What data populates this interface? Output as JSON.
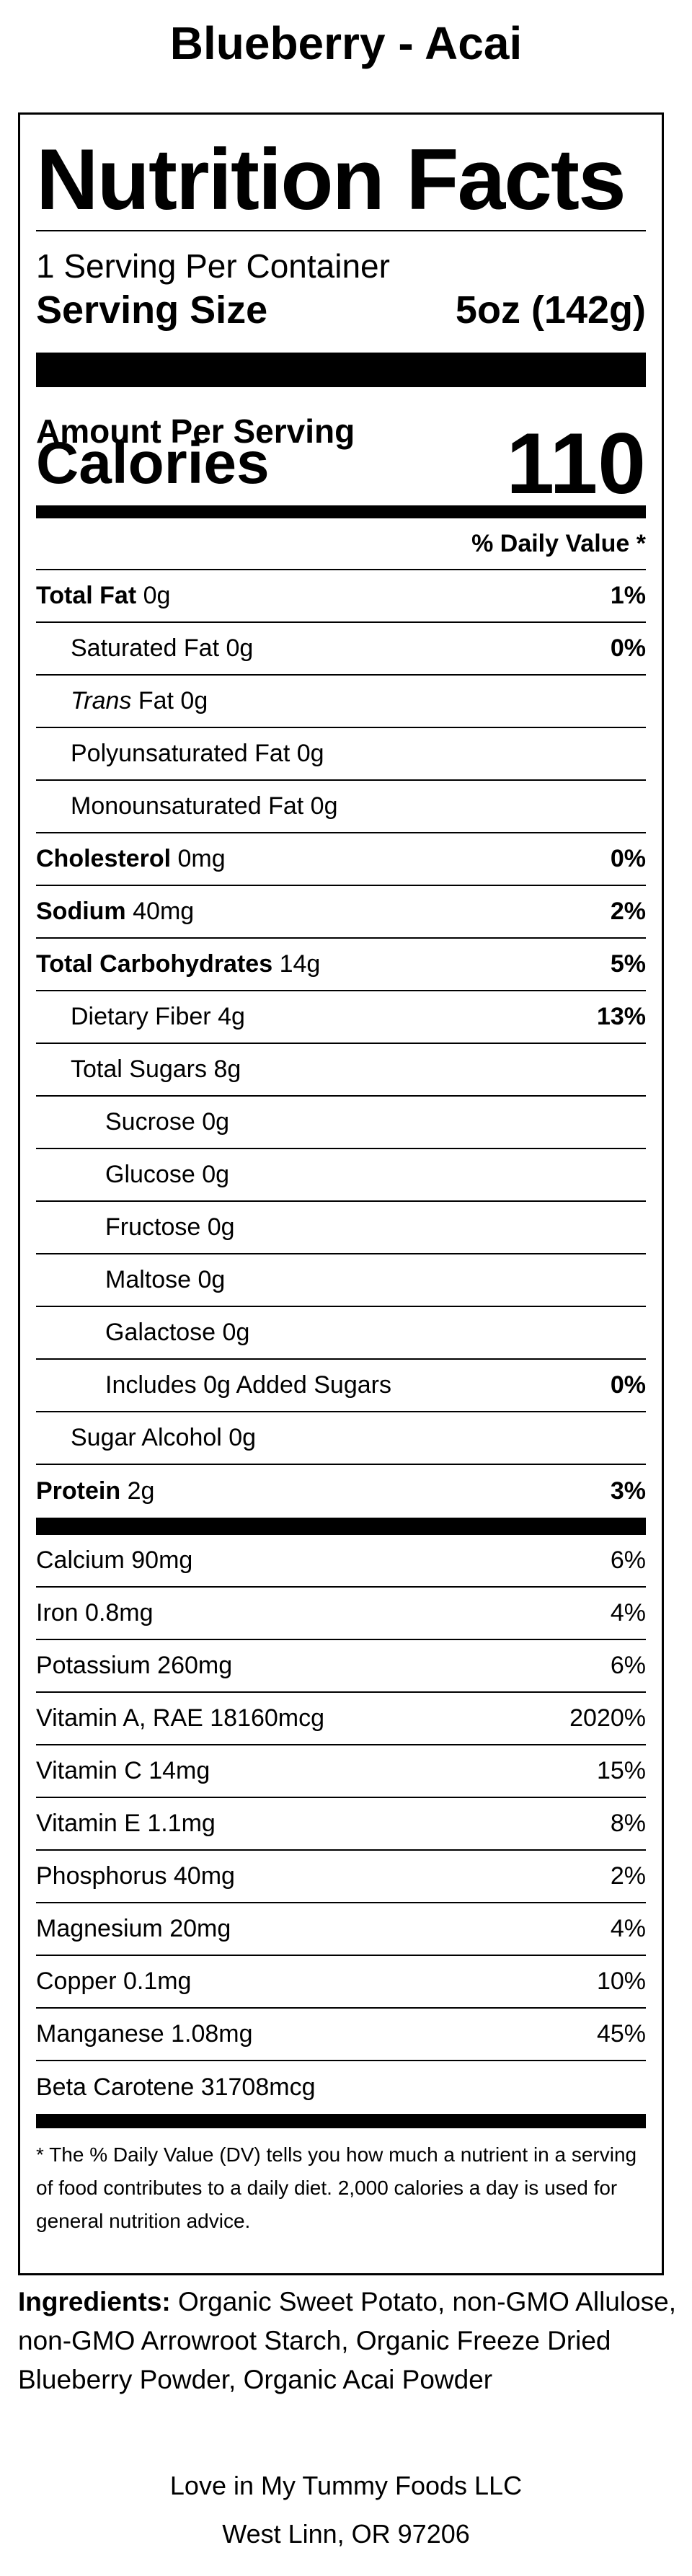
{
  "product": {
    "title": "Blueberry - Acai"
  },
  "label": {
    "heading": "Nutrition Facts",
    "servings_per_container": "1 Serving Per Container",
    "serving_size_label": "Serving Size",
    "serving_size_value": "5oz (142g)",
    "amount_per_serving": "Amount Per Serving",
    "calories_label": "Calories",
    "calories_value": "110",
    "daily_value_header": "% Daily Value *",
    "nutrients": [
      {
        "name": "Total Fat",
        "amount": "0g",
        "dv": "1%"
      },
      {
        "name": "Saturated Fat",
        "amount": "0g",
        "dv": "0%"
      },
      {
        "name": "Trans",
        "name_rest": "Fat",
        "amount": "0g"
      },
      {
        "name": "Polyunsaturated Fat",
        "amount": "0g"
      },
      {
        "name": "Monounsaturated Fat",
        "amount": "0g"
      },
      {
        "name": "Cholesterol",
        "amount": "0mg",
        "dv": "0%"
      },
      {
        "name": "Sodium",
        "amount": "40mg",
        "dv": "2%"
      },
      {
        "name": "Total Carbohydrates",
        "amount": "14g",
        "dv": "5%"
      },
      {
        "name": "Dietary Fiber",
        "amount": "4g",
        "dv": "13%"
      },
      {
        "name": "Total Sugars",
        "amount": "8g"
      },
      {
        "name": "Sucrose",
        "amount": "0g"
      },
      {
        "name": "Glucose",
        "amount": "0g"
      },
      {
        "name": "Fructose",
        "amount": "0g"
      },
      {
        "name": "Maltose",
        "amount": "0g"
      },
      {
        "name": "Galactose",
        "amount": "0g"
      },
      {
        "name": "Includes 0g Added Sugars",
        "dv": "0%"
      },
      {
        "name": "Sugar Alcohol",
        "amount": "0g"
      },
      {
        "name": "Protein",
        "amount": "2g",
        "dv": "3%"
      }
    ],
    "vitamins": [
      {
        "text": "Calcium 90mg",
        "dv": "6%"
      },
      {
        "text": "Iron 0.8mg",
        "dv": "4%"
      },
      {
        "text": "Potassium 260mg",
        "dv": "6%"
      },
      {
        "text": "Vitamin A, RAE 18160mcg",
        "dv": "2020%"
      },
      {
        "text": "Vitamin C 14mg",
        "dv": "15%"
      },
      {
        "text": "Vitamin E 1.1mg",
        "dv": "8%"
      },
      {
        "text": "Phosphorus 40mg",
        "dv": "2%"
      },
      {
        "text": "Magnesium 20mg",
        "dv": "4%"
      },
      {
        "text": "Copper 0.1mg",
        "dv": "10%"
      },
      {
        "text": "Manganese 1.08mg",
        "dv": "45%"
      },
      {
        "text": "Beta Carotene 31708mcg",
        "dv": ""
      }
    ],
    "footnote": "* The % Daily Value (DV) tells you how much a nutrient in a serving of food contributes to a daily diet. 2,000 calories a day is used for general nutrition advice."
  },
  "ingredients": {
    "label": "Ingredients:",
    "text": " Organic Sweet Potato, non-GMO Allulose, non-GMO Arrowroot Starch, Organic Freeze Dried Blueberry Powder, Organic Acai Powder"
  },
  "company": {
    "name": "Love in My Tummy Foods LLC",
    "address": "West Linn, OR 97206"
  }
}
